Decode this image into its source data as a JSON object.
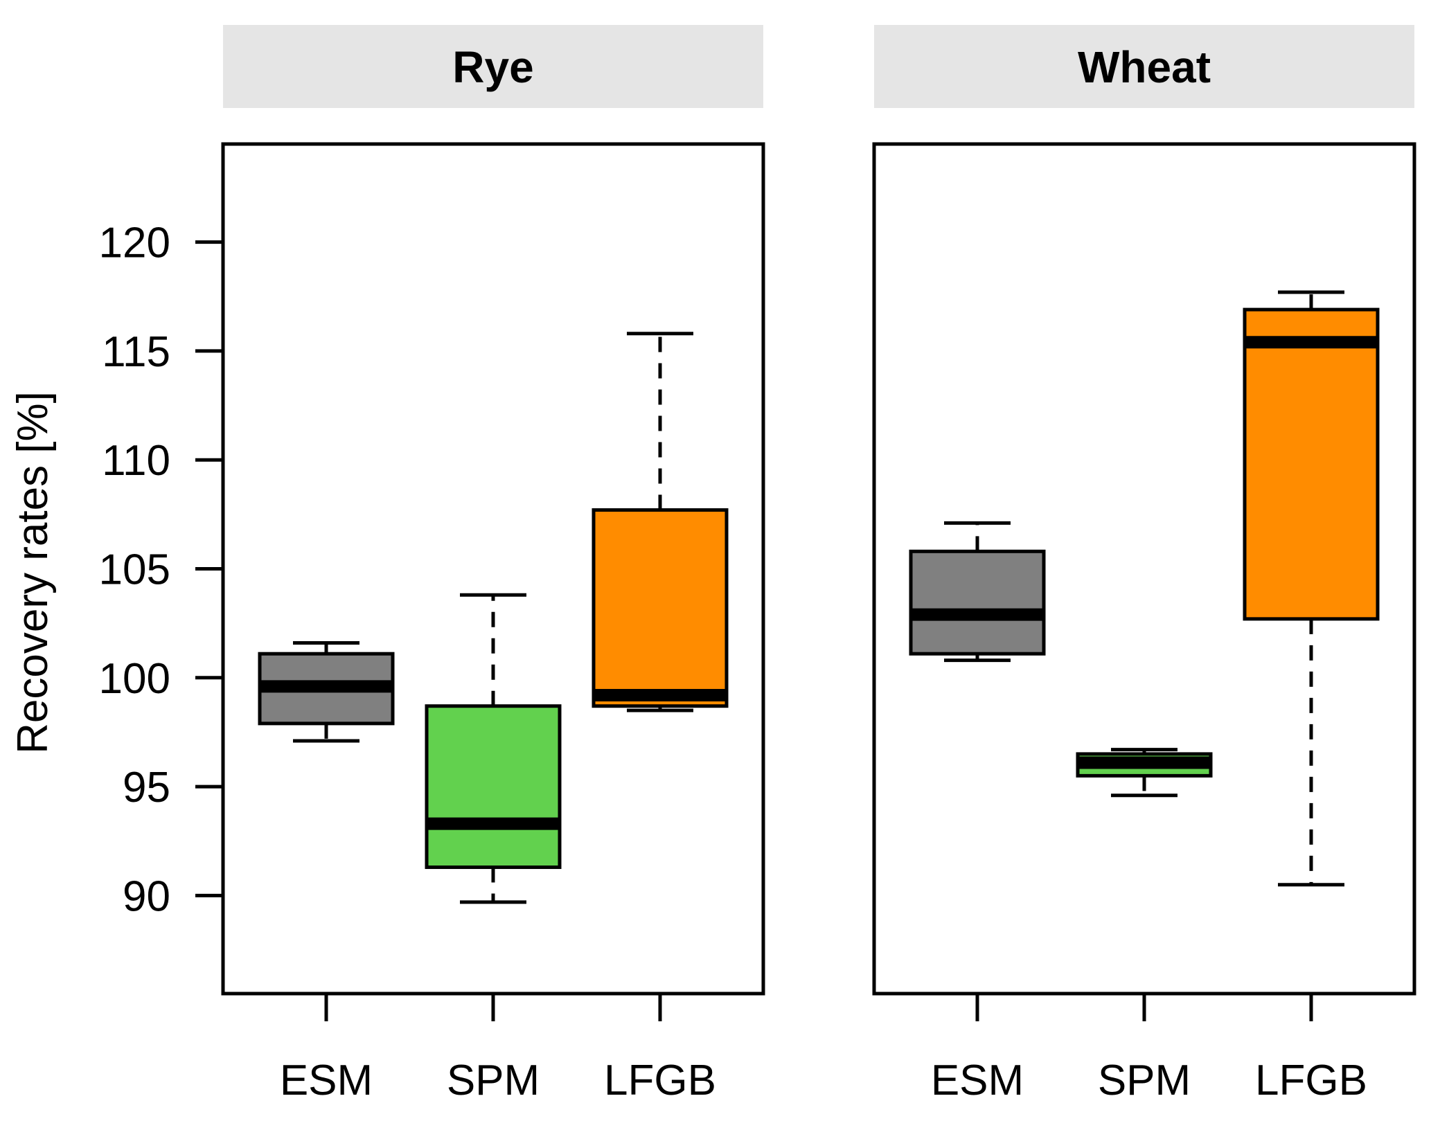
{
  "chart_data": {
    "type": "boxplot",
    "ylabel": "Recovery rates [%]",
    "ylim": [
      85.5,
      124.5
    ],
    "yticks": [
      90,
      95,
      100,
      105,
      110,
      115,
      120
    ],
    "categories": [
      "ESM",
      "SPM",
      "LFGB"
    ],
    "colors": {
      "ESM": "#808080",
      "SPM": "#62D14E",
      "LFGB": "#FF8C00"
    },
    "panels": [
      {
        "title": "Rye",
        "boxes": [
          {
            "category": "ESM",
            "min": 97.1,
            "q1": 97.9,
            "median": 99.6,
            "q3": 101.1,
            "max": 101.6
          },
          {
            "category": "SPM",
            "min": 89.7,
            "q1": 91.3,
            "median": 93.3,
            "q3": 98.7,
            "max": 103.8
          },
          {
            "category": "LFGB",
            "min": 98.5,
            "q1": 98.7,
            "median": 99.2,
            "q3": 107.7,
            "max": 115.8
          }
        ]
      },
      {
        "title": "Wheat",
        "boxes": [
          {
            "category": "ESM",
            "min": 100.8,
            "q1": 101.1,
            "median": 102.9,
            "q3": 105.8,
            "max": 107.1
          },
          {
            "category": "SPM",
            "min": 94.6,
            "q1": 95.5,
            "median": 96.1,
            "q3": 96.5,
            "max": 96.7
          },
          {
            "category": "LFGB",
            "min": 90.5,
            "q1": 102.7,
            "median": 115.4,
            "q3": 116.9,
            "max": 117.7
          }
        ]
      }
    ]
  }
}
